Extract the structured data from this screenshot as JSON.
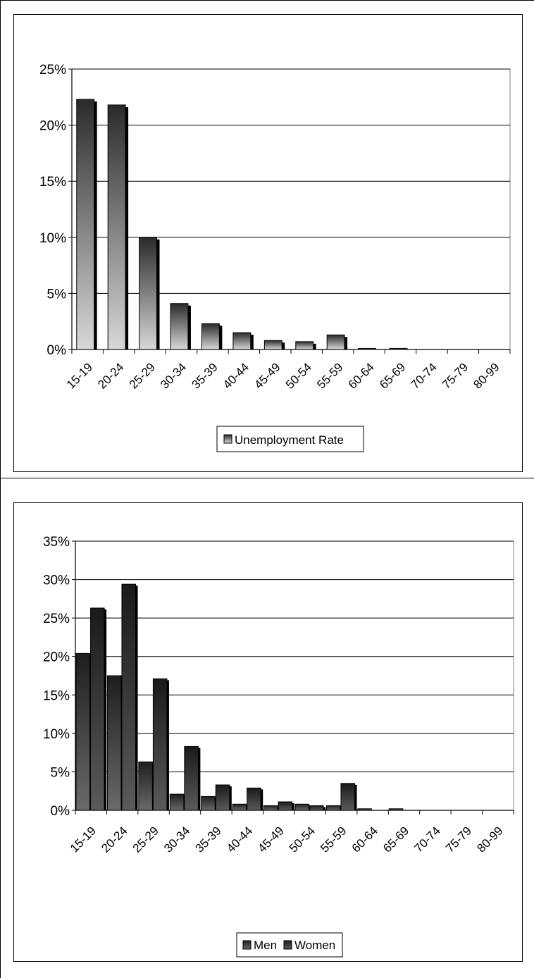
{
  "chart_data": [
    {
      "type": "bar",
      "categories": [
        "15-19",
        "20-24",
        "25-29",
        "30-34",
        "35-39",
        "40-44",
        "45-49",
        "50-54",
        "55-59",
        "60-64",
        "65-69",
        "70-74",
        "75-79",
        "80-99"
      ],
      "series": [
        {
          "name": "Unemployment Rate",
          "values": [
            22.3,
            21.8,
            10.0,
            4.1,
            2.3,
            1.5,
            0.8,
            0.7,
            1.3,
            0.1,
            0.1,
            0,
            0,
            0
          ]
        }
      ],
      "yticks": [
        "0%",
        "5%",
        "10%",
        "15%",
        "20%",
        "25%"
      ],
      "ylim": [
        0,
        25
      ],
      "grid": true,
      "legend_position": "bottom",
      "colors": {
        "bar_light": "#d8d8d8",
        "bar_dark": "#2a2a2a"
      }
    },
    {
      "type": "bar",
      "categories": [
        "15-19",
        "20-24",
        "25-29",
        "30-34",
        "35-39",
        "40-44",
        "45-49",
        "50-54",
        "55-59",
        "60-64",
        "65-69",
        "70-74",
        "75-79",
        "80-99"
      ],
      "series": [
        {
          "name": "Men",
          "values": [
            20.4,
            17.5,
            6.3,
            2.1,
            1.8,
            0.8,
            0.6,
            0.8,
            0.6,
            0.2,
            0.2,
            0,
            0,
            0
          ]
        },
        {
          "name": "Women",
          "values": [
            26.3,
            29.4,
            17.1,
            8.3,
            3.3,
            2.9,
            1.1,
            0.6,
            3.5,
            0,
            0,
            0,
            0,
            0
          ]
        }
      ],
      "yticks": [
        "0%",
        "5%",
        "10%",
        "15%",
        "20%",
        "25%",
        "30%",
        "35%"
      ],
      "ylim": [
        0,
        35
      ],
      "grid": true,
      "legend_position": "bottom",
      "colors": {
        "men_light": "#6a6a6a",
        "men_dark": "#1e1e1e",
        "women_light": "#5a5a5a",
        "women_dark": "#1a1a1a"
      }
    }
  ]
}
